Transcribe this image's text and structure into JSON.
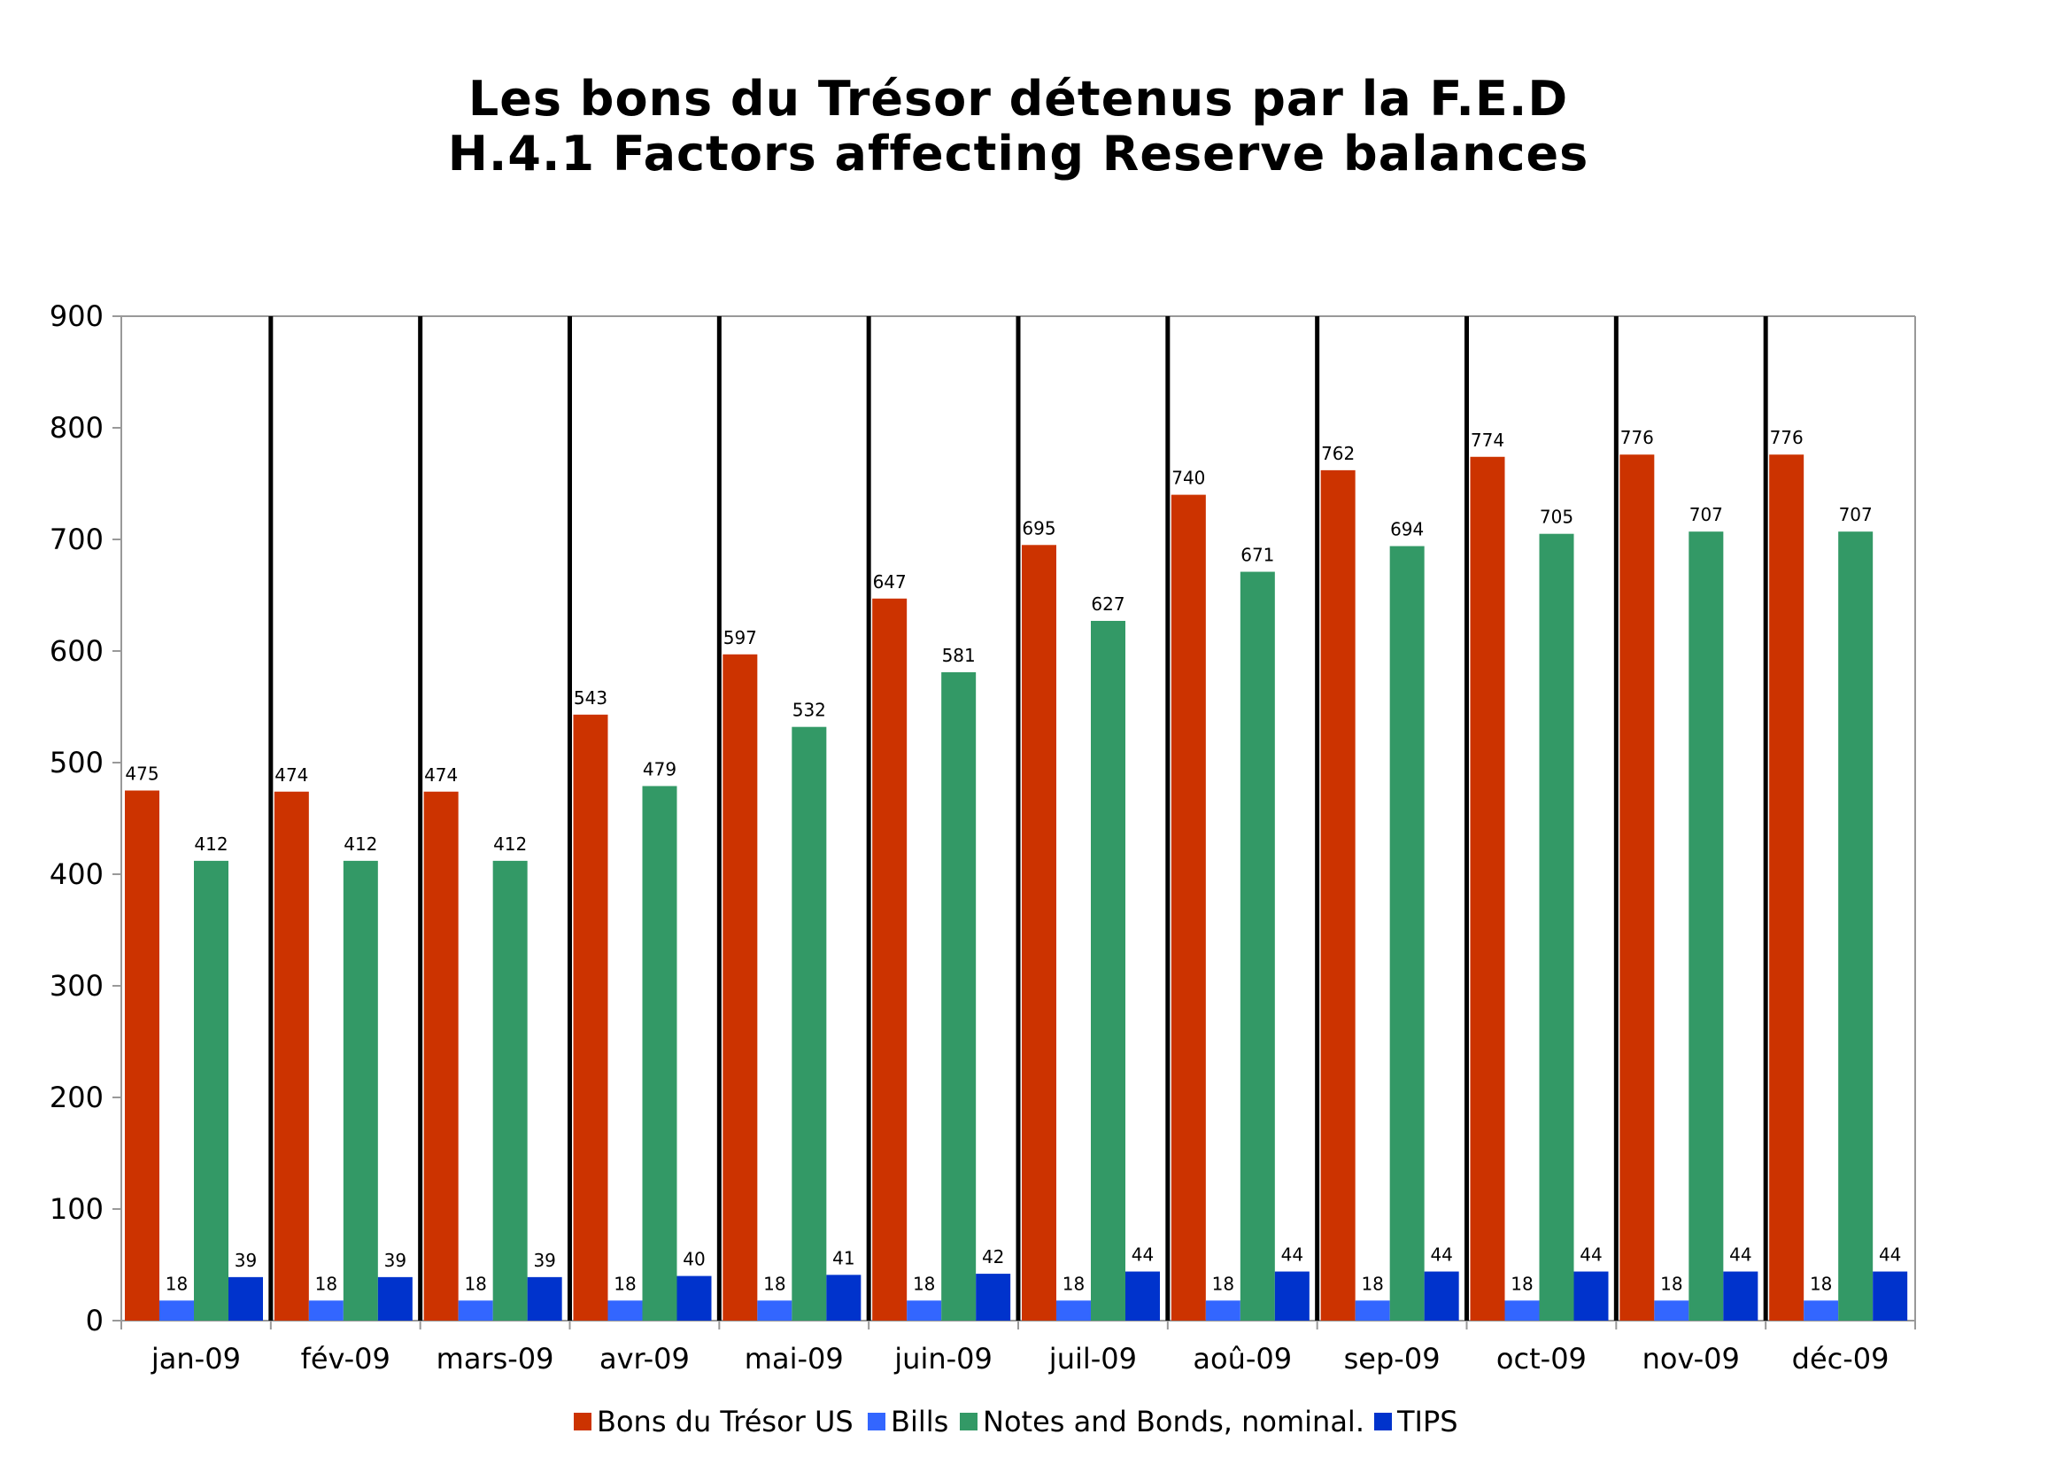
{
  "chart_data": {
    "type": "bar",
    "title_line1": "Les bons du Trésor détenus par la F.E.D",
    "title_line2": "H.4.1 Factors affecting Reserve balances",
    "categories": [
      "jan-09",
      "fév-09",
      "mars-09",
      "avr-09",
      "mai-09",
      "juin-09",
      "juil-09",
      "aoû-09",
      "sep-09",
      "oct-09",
      "nov-09",
      "déc-09"
    ],
    "ylim": [
      0,
      900
    ],
    "yticks": [
      0,
      100,
      200,
      300,
      400,
      500,
      600,
      700,
      800,
      900
    ],
    "grid": false,
    "legend_position": "bottom",
    "series": [
      {
        "name": "Bons du Trésor US",
        "color": "#cc3300",
        "values": [
          475,
          474,
          474,
          543,
          597,
          647,
          695,
          740,
          762,
          774,
          776,
          776
        ]
      },
      {
        "name": "Bills",
        "color": "#3366ff",
        "values": [
          18,
          18,
          18,
          18,
          18,
          18,
          18,
          18,
          18,
          18,
          18,
          18
        ]
      },
      {
        "name": "Notes and Bonds, nominal.",
        "color": "#339966",
        "values": [
          412,
          412,
          412,
          479,
          532,
          581,
          627,
          671,
          694,
          705,
          707,
          707
        ]
      },
      {
        "name": "TIPS",
        "color": "#0033cc",
        "values": [
          39,
          39,
          39,
          40,
          41,
          42,
          44,
          44,
          44,
          44,
          44,
          44
        ]
      }
    ]
  }
}
